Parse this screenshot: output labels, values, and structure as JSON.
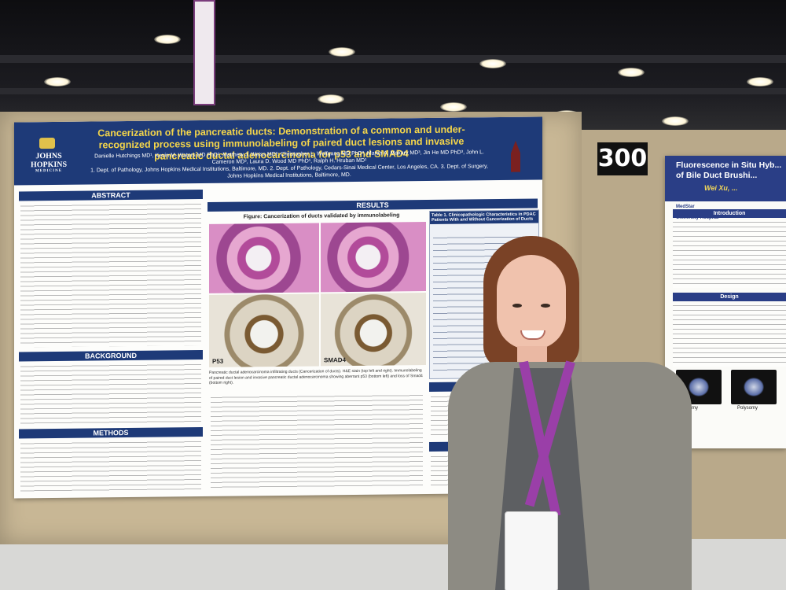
{
  "booth": {
    "number": "300"
  },
  "poster_main": {
    "title": "Cancerization of the pancreatic ducts: Demonstration of a common and under-recognized process using immunolabeling of paired duct lesions and invasive pancreatic ductal adenocarcinoma for p53 and SMAD4",
    "authors": "Danielle Hutchings MD¹, Kevin M. Waters MD PhD², Matthew J. Weiss MD³, Christopher L. Wolfgang MD PhD³, Martin A. Makary MD³, Jin He MD PhD³, John L. Cameron MD³, Laura D. Wood MD PhD¹, Ralph H. Hruban MD¹",
    "affiliations": "1. Dept. of Pathology, Johns Hopkins Medical Institutions, Baltimore, MD. 2. Dept. of Pathology, Cedars-Sinai Medical Center, Los Angeles, CA. 3. Dept. of Surgery, Johns Hopkins Medical Institutions, Baltimore, MD.",
    "logo_text": "JOHNS HOPKINS",
    "logo_sub": "MEDICINE",
    "sections": {
      "abstract": "ABSTRACT",
      "background": "BACKGROUND",
      "methods": "METHODS",
      "results": "RESULTS",
      "conclusion": "CONCLUSION",
      "references": "REFERENCES"
    },
    "figure_title": "Figure: Cancerization of ducts validated by immunolabeling",
    "panel_labels": {
      "p53": "P53",
      "smad4": "SMAD4"
    },
    "figure_caption": "Pancreatic ductal adenocarcinoma infiltrating ducts (Cancerization of ducts). H&E stain (top left and right). Immunolabeling of paired duct lesion and invasive pancreatic ductal adenocarcinoma showing aberrant p53 (bottom left) and loss of Smad4 (bottom right).",
    "table_title": "Table 1. Clinicopathologic Characteristics in PDAC Patients With and Without Cancerization of Ducts"
  },
  "poster_side": {
    "title": "Fluorescence in Situ Hyb... of Bile Duct Brushi...",
    "author": "Wei Xu, ...",
    "logo": "MedStar Georgetown University Hospital",
    "sections": {
      "introduction": "Introduction",
      "design": "Design"
    },
    "fish_labels": [
      "Disomy",
      "Polysomy"
    ]
  }
}
